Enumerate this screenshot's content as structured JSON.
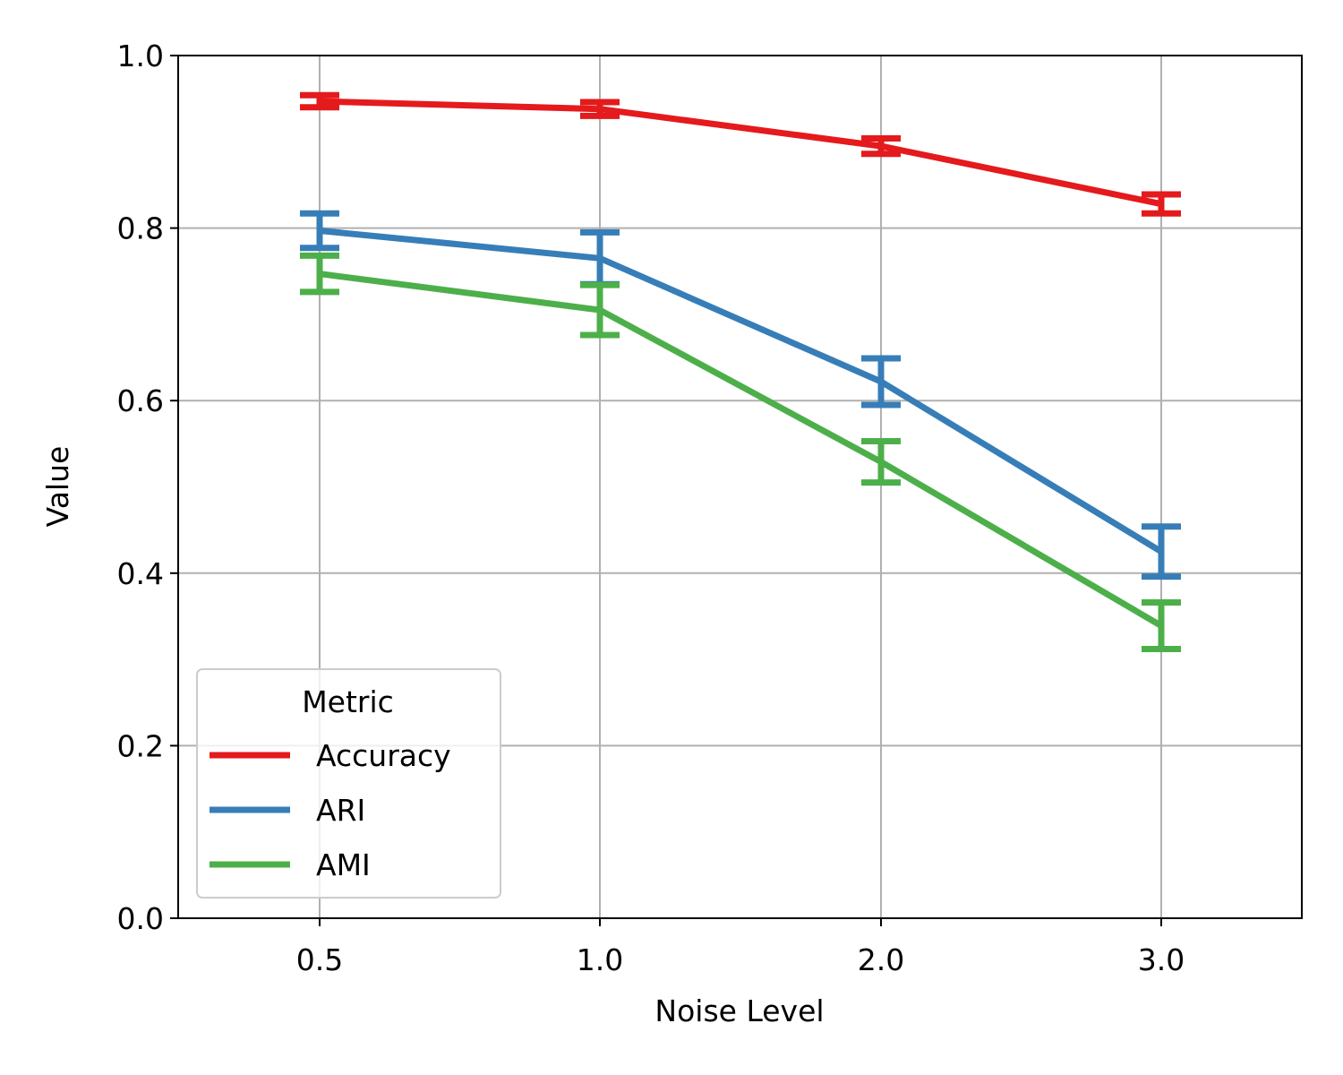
{
  "chart_data": {
    "type": "line",
    "title": "",
    "xlabel": "Noise Level",
    "ylabel": "Value",
    "categories": [
      "0.5",
      "1.0",
      "2.0",
      "3.0"
    ],
    "ylim": [
      0.0,
      1.0
    ],
    "yticks": [
      "0.0",
      "0.2",
      "0.4",
      "0.6",
      "0.8",
      "1.0"
    ],
    "grid": true,
    "legend": {
      "title": "Metric",
      "placement": "lower-left"
    },
    "series": [
      {
        "name": "Accuracy",
        "color": "#e41a1c",
        "values": [
          0.947,
          0.938,
          0.895,
          0.828
        ],
        "errors": [
          0.007,
          0.008,
          0.009,
          0.011
        ]
      },
      {
        "name": "ARI",
        "color": "#377eb8",
        "values": [
          0.797,
          0.765,
          0.622,
          0.425
        ],
        "errors": [
          0.02,
          0.03,
          0.027,
          0.029
        ]
      },
      {
        "name": "AMI",
        "color": "#4daf4a",
        "values": [
          0.747,
          0.705,
          0.529,
          0.339
        ],
        "errors": [
          0.021,
          0.029,
          0.024,
          0.027
        ]
      }
    ]
  }
}
